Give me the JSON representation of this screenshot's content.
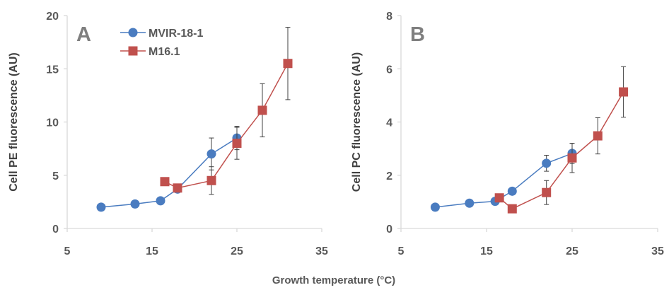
{
  "shared_xlabel": "Growth temperature (°C)",
  "colors": {
    "MVIR-18-1": "#4a7cc0",
    "M16.1": "#c0504d",
    "axis": "#d9d9d9",
    "text": "#595959"
  },
  "chart_data": [
    {
      "type": "line",
      "panel_label": "A",
      "ylabel": "Cell PE fluorescence (AU)",
      "xlim": [
        5,
        35
      ],
      "ylim": [
        0,
        20
      ],
      "xticks": [
        5,
        15,
        25,
        35
      ],
      "yticks": [
        0,
        5,
        10,
        15,
        20
      ],
      "legend": {
        "position": "top-left",
        "entries": [
          "MVIR-18-1",
          "M16.1"
        ]
      },
      "series": [
        {
          "name": "MVIR-18-1",
          "marker": "circle",
          "x": [
            9,
            13,
            16,
            18,
            22,
            25
          ],
          "y": [
            2.0,
            2.3,
            2.6,
            3.7,
            7.0,
            8.5
          ],
          "err": [
            0,
            0,
            0,
            0,
            1.5,
            1.1
          ]
        },
        {
          "name": "M16.1",
          "marker": "square",
          "x": [
            16.5,
            18,
            22,
            25,
            28,
            31
          ],
          "y": [
            4.4,
            3.8,
            4.5,
            8.0,
            11.1,
            15.5
          ],
          "err": [
            0,
            0,
            1.3,
            1.5,
            2.5,
            3.4
          ]
        }
      ]
    },
    {
      "type": "line",
      "panel_label": "B",
      "ylabel": "Cell PC fluorescence (AU)",
      "xlim": [
        5,
        35
      ],
      "ylim": [
        0,
        8
      ],
      "xticks": [
        5,
        15,
        25,
        35
      ],
      "yticks": [
        0,
        2,
        4,
        6,
        8
      ],
      "series": [
        {
          "name": "MVIR-18-1",
          "marker": "circle",
          "x": [
            9,
            13,
            16,
            18,
            22,
            25
          ],
          "y": [
            0.8,
            0.95,
            1.02,
            1.4,
            2.45,
            2.82
          ],
          "err": [
            0,
            0,
            0,
            0,
            0.3,
            0.38
          ]
        },
        {
          "name": "M16.1",
          "marker": "square",
          "x": [
            16.5,
            18,
            22,
            25,
            28,
            31
          ],
          "y": [
            1.15,
            0.74,
            1.35,
            2.65,
            3.48,
            5.13
          ],
          "err": [
            0,
            0,
            0.45,
            0.55,
            0.68,
            0.95
          ]
        }
      ]
    }
  ]
}
